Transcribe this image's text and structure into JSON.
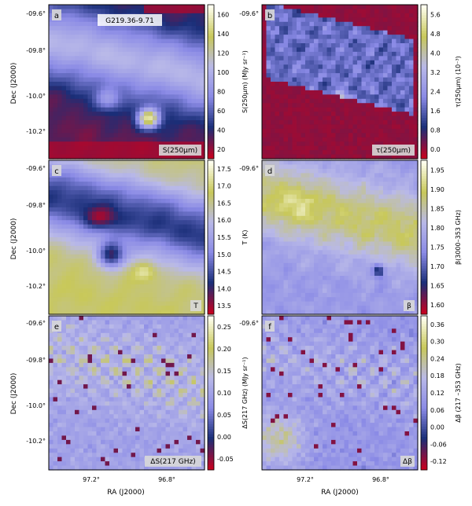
{
  "figure": {
    "object_name": "G219.36-9.71",
    "dec_axis_label": "Dec (J2000)",
    "ra_axis_label": "RA (J2000)",
    "dec_ticks": [
      "-09.6°",
      "-09.8°",
      "-10.0°",
      "-10.2°"
    ],
    "ra_ticks": [
      "97.2°",
      "96.8°"
    ]
  },
  "panels": [
    {
      "letter": "a",
      "symbol": "S(250μm)",
      "map": "a",
      "colorbar": {
        "title": "S(250μm) (MJy sr⁻¹)",
        "ticks": [
          "20",
          "40",
          "60",
          "80",
          "100",
          "120",
          "140",
          "160"
        ]
      }
    },
    {
      "letter": "b",
      "symbol": "τ(250μm)",
      "map": "b",
      "colorbar": {
        "title": "τ(250μm) (10⁻³)",
        "ticks": [
          "0.0",
          "0.8",
          "1.6",
          "2.4",
          "3.2",
          "4.0",
          "4.8",
          "5.6"
        ]
      }
    },
    {
      "letter": "c",
      "symbol": "T",
      "map": "c",
      "colorbar": {
        "title": "T (K)",
        "ticks": [
          "13.5",
          "14.0",
          "14.5",
          "15.0",
          "15.5",
          "16.0",
          "16.5",
          "17.0",
          "17.5"
        ]
      }
    },
    {
      "letter": "d",
      "symbol": "β",
      "map": "d",
      "colorbar": {
        "title": "β(3000–353 GHz)",
        "ticks": [
          "1.60",
          "1.65",
          "1.70",
          "1.75",
          "1.80",
          "1.85",
          "1.90",
          "1.95"
        ]
      }
    },
    {
      "letter": "e",
      "symbol": "ΔS(217 GHz)",
      "map": "e",
      "colorbar": {
        "title": "ΔS(217 GHz) (MJy sr⁻¹)",
        "ticks": [
          "-0.05",
          "0.00",
          "0.05",
          "0.10",
          "0.15",
          "0.20",
          "0.25"
        ]
      }
    },
    {
      "letter": "f",
      "symbol": "Δβ",
      "map": "f",
      "colorbar": {
        "title": "Δβ (217 –353 GHz)",
        "ticks": [
          "-0.12",
          "-0.06",
          "0.00",
          "0.06",
          "0.12",
          "0.18",
          "0.24",
          "0.30",
          "0.36"
        ]
      }
    }
  ],
  "colormap": [
    "#c8001e",
    "#1a2e78",
    "#8a8ae6",
    "#b9b9e8",
    "#c8c85a",
    "#fffff0"
  ],
  "chart_data": [
    {
      "type": "heatmap",
      "panel": "a",
      "title": "",
      "xlabel": "",
      "ylabel": "Dec (J2000)",
      "colorbar_label": "S(250μm) (MJy sr⁻¹)",
      "colorbar_range": [
        10,
        170
      ]
    },
    {
      "type": "heatmap",
      "panel": "b",
      "title": "",
      "xlabel": "",
      "ylabel": "",
      "colorbar_label": "τ(250μm) (10⁻³)",
      "colorbar_range": [
        -0.5,
        5.8
      ]
    },
    {
      "type": "heatmap",
      "panel": "c",
      "title": "",
      "xlabel": "",
      "ylabel": "Dec (J2000)",
      "colorbar_label": "T (K)",
      "colorbar_range": [
        13.2,
        17.5
      ]
    },
    {
      "type": "heatmap",
      "panel": "d",
      "title": "",
      "xlabel": "",
      "ylabel": "",
      "colorbar_label": "β(3000–353 GHz)",
      "colorbar_range": [
        1.6,
        1.98
      ]
    },
    {
      "type": "heatmap",
      "panel": "e",
      "title": "",
      "xlabel": "RA (J2000)",
      "ylabel": "Dec (J2000)",
      "colorbar_label": "ΔS(217 GHz) (MJy sr⁻¹)",
      "colorbar_range": [
        -0.09,
        0.28
      ]
    },
    {
      "type": "heatmap",
      "panel": "f",
      "title": "",
      "xlabel": "RA (J2000)",
      "ylabel": "",
      "colorbar_label": "Δβ (217 –353 GHz)",
      "colorbar_range": [
        -0.15,
        0.38
      ]
    }
  ]
}
